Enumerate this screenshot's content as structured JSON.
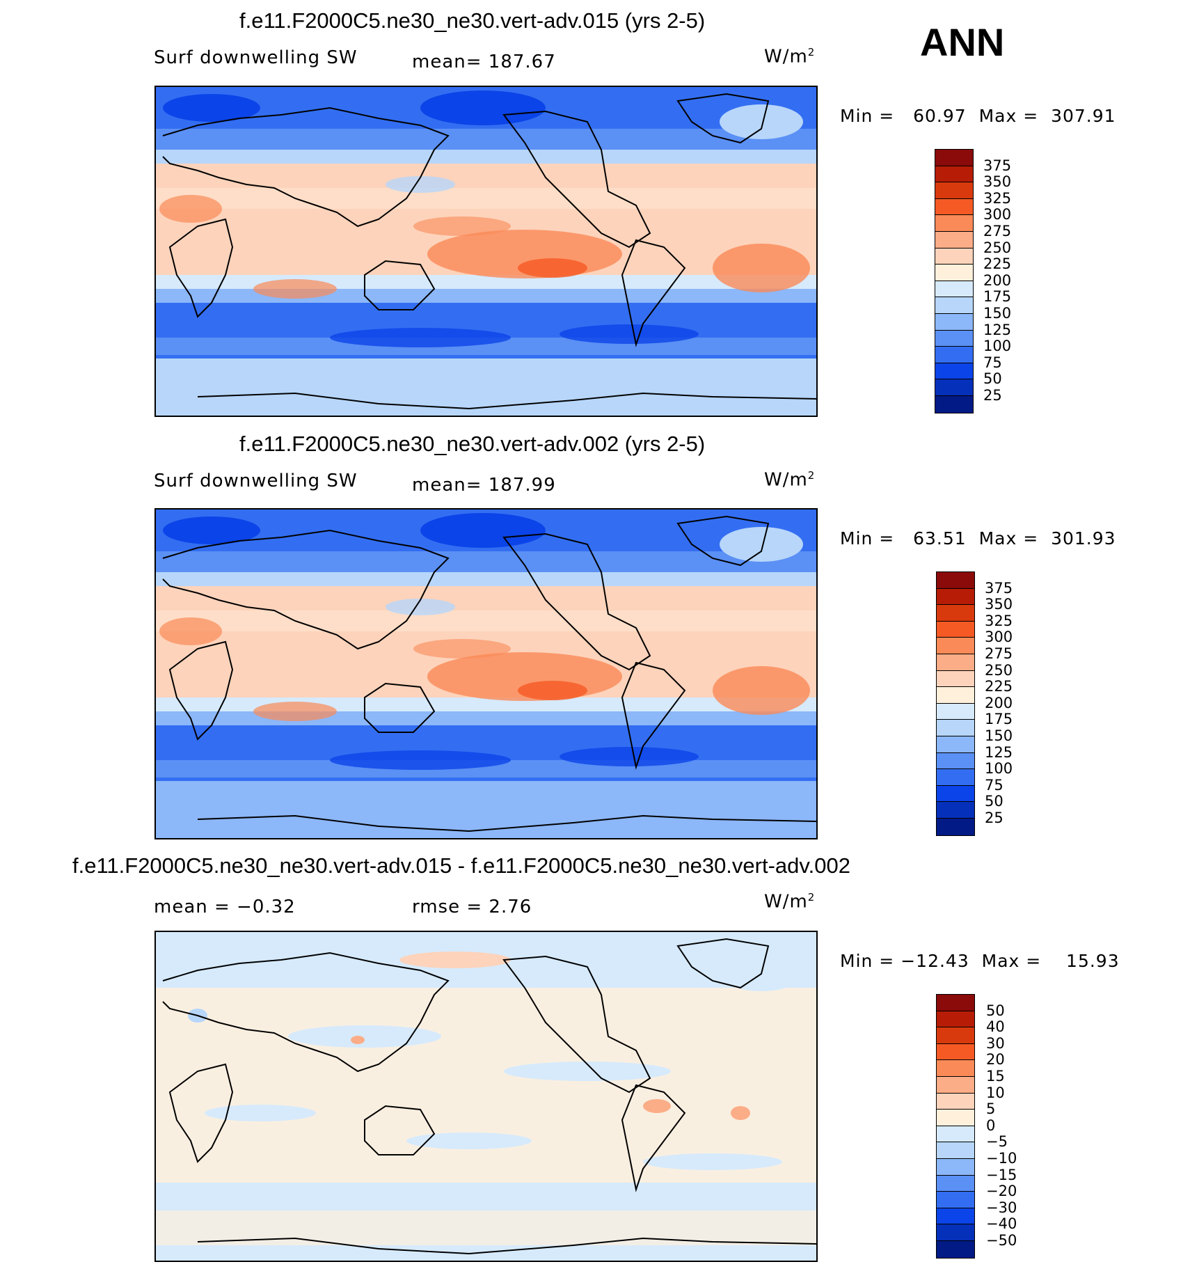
{
  "season": "ANN",
  "units": "W/m",
  "units_sup": "2",
  "panels": [
    {
      "title": "f.e11.F2000C5.ne30_ne30.vert-adv.015 (yrs 2-5)",
      "variable": "Surf  downwelling  SW",
      "stat": "mean=  187.67",
      "min_label": "Min  =",
      "min_value": "60.97",
      "max_label": "Max  =",
      "max_value": "307.91",
      "mean": 187.67,
      "min": 60.97,
      "max": 307.91
    },
    {
      "title": "f.e11.F2000C5.ne30_ne30.vert-adv.002 (yrs 2-5)",
      "variable": "Surf  downwelling  SW",
      "stat": "mean=  187.99",
      "min_label": "Min  =",
      "min_value": "63.51",
      "max_label": "Max  =",
      "max_value": "301.93",
      "mean": 187.99,
      "min": 63.51,
      "max": 301.93
    },
    {
      "title": "f.e11.F2000C5.ne30_ne30.vert-adv.015 - f.e11.F2000C5.ne30_ne30.vert-adv.002",
      "variable": "mean  =     −0.32",
      "stat": "rmse  =     2.76",
      "min_label": "Min  =",
      "min_value": "−12.43",
      "max_label": "Max  =",
      "max_value": "15.93",
      "mean": -0.32,
      "rmse": 2.76,
      "min": -12.43,
      "max": 15.93
    }
  ],
  "colorbar_abs": {
    "labels": [
      "375",
      "350",
      "325",
      "300",
      "275",
      "250",
      "225",
      "200",
      "175",
      "150",
      "125",
      "100",
      "75",
      "50",
      "25"
    ],
    "colors": [
      "#8b0a0a",
      "#b71d06",
      "#d93a0d",
      "#f65a24",
      "#fa8a57",
      "#fbad87",
      "#fdd3bb",
      "#fff0dc",
      "#d6eafc",
      "#b7d6fa",
      "#8cb7f8",
      "#5b90f5",
      "#336ef2",
      "#0b44e8",
      "#0530ba",
      "#021a85"
    ]
  },
  "colorbar_diff": {
    "labels": [
      "50",
      "40",
      "30",
      "20",
      "15",
      "10",
      "5",
      "0",
      "−5",
      "−10",
      "−15",
      "−20",
      "−30",
      "−40",
      "−50"
    ],
    "colors": [
      "#8b0a0a",
      "#b71d06",
      "#d93a0d",
      "#f65a24",
      "#fa8a57",
      "#fbad87",
      "#fdd3bb",
      "#fff0dc",
      "#d6eafc",
      "#b7d6fa",
      "#8cb7f8",
      "#5b90f5",
      "#336ef2",
      "#0b44e8",
      "#0530ba",
      "#021a85"
    ]
  }
}
